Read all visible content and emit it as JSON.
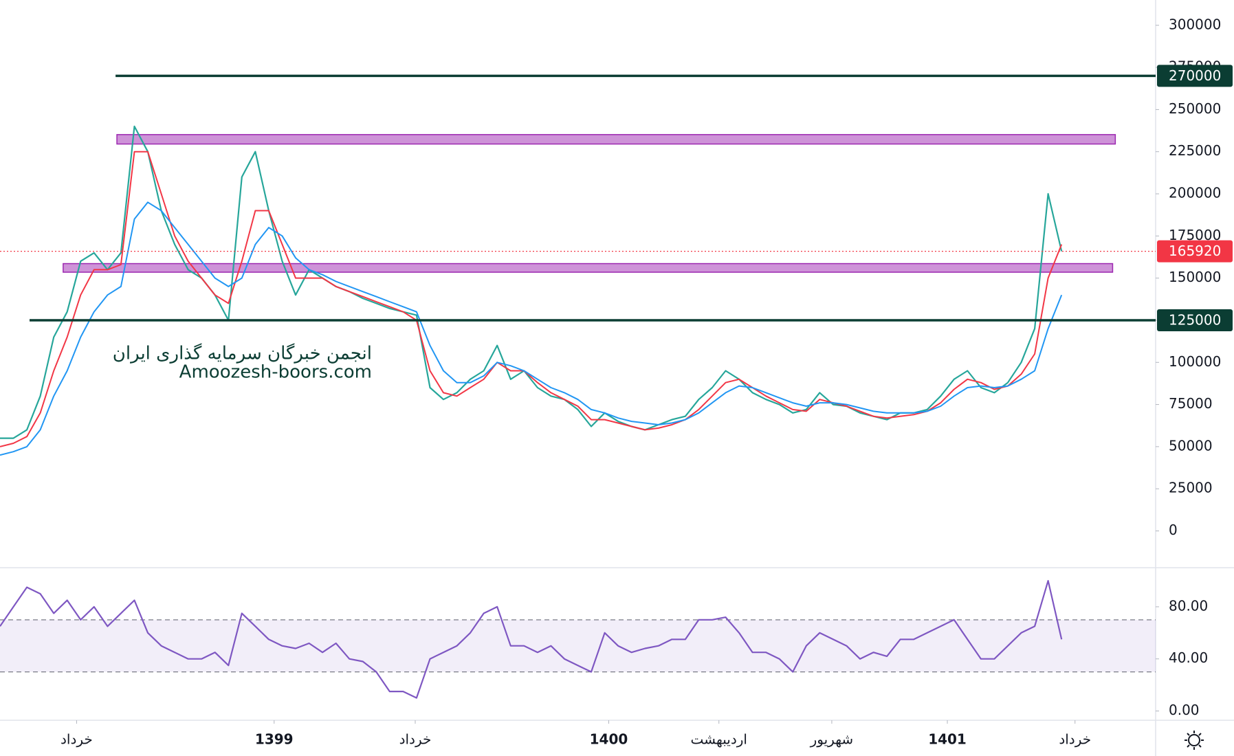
{
  "chart_data": [
    {
      "type": "line",
      "x": [
        0,
        1,
        2,
        3,
        4,
        5,
        6,
        7,
        8,
        9,
        10,
        11,
        12,
        13,
        14,
        15,
        16,
        17,
        18,
        19,
        20,
        21,
        22,
        23,
        24,
        25,
        26,
        27,
        28,
        29,
        30,
        31,
        32,
        33,
        34,
        35,
        36,
        37,
        38,
        39,
        40,
        41,
        42,
        43,
        44,
        45,
        46,
        47,
        48,
        49,
        50,
        51,
        52,
        53,
        54,
        55,
        56,
        57,
        58,
        59,
        60,
        61,
        62,
        63,
        64,
        65,
        66,
        67,
        68,
        69,
        70,
        71,
        72,
        73,
        74,
        75,
        76,
        77,
        78,
        79
      ],
      "series": [
        {
          "color": "#26a69a",
          "values": [
            55000,
            55000,
            60000,
            80000,
            115000,
            130000,
            160000,
            165000,
            155000,
            165000,
            240000,
            225000,
            190000,
            170000,
            155000,
            150000,
            140000,
            125000,
            210000,
            225000,
            190000,
            160000,
            140000,
            155000,
            150000,
            145000,
            142000,
            138000,
            135000,
            132000,
            130000,
            128000,
            85000,
            78000,
            82000,
            90000,
            95000,
            110000,
            90000,
            95000,
            85000,
            80000,
            78000,
            72000,
            62000,
            70000,
            65000,
            62000,
            60000,
            63000,
            66000,
            68000,
            78000,
            85000,
            95000,
            90000,
            82000,
            78000,
            75000,
            70000,
            72000,
            82000,
            75000,
            74000,
            70000,
            68000,
            66000,
            70000,
            70000,
            72000,
            80000,
            90000,
            95000,
            85000,
            82000,
            88000,
            100000,
            120000,
            200000,
            165920
          ]
        },
        {
          "color": "#f23645",
          "values": [
            50000,
            52000,
            56000,
            70000,
            95000,
            115000,
            140000,
            155000,
            155000,
            158000,
            225000,
            225000,
            200000,
            175000,
            160000,
            150000,
            140000,
            135000,
            160000,
            190000,
            190000,
            170000,
            150000,
            150000,
            150000,
            145000,
            142000,
            139000,
            136000,
            133000,
            130000,
            125000,
            95000,
            82000,
            80000,
            85000,
            90000,
            100000,
            95000,
            95000,
            88000,
            82000,
            78000,
            74000,
            66000,
            66000,
            64000,
            62000,
            60000,
            61000,
            63000,
            66000,
            72000,
            80000,
            88000,
            90000,
            85000,
            80000,
            76000,
            72000,
            71000,
            78000,
            76000,
            74000,
            71000,
            68000,
            67000,
            68000,
            69000,
            71000,
            76000,
            84000,
            90000,
            88000,
            84000,
            86000,
            93000,
            105000,
            150000,
            170000
          ]
        },
        {
          "color": "#2196f3",
          "values": [
            45000,
            47000,
            50000,
            60000,
            80000,
            95000,
            115000,
            130000,
            140000,
            145000,
            185000,
            195000,
            190000,
            180000,
            170000,
            160000,
            150000,
            145000,
            150000,
            170000,
            180000,
            175000,
            162000,
            155000,
            152000,
            148000,
            145000,
            142000,
            139000,
            136000,
            133000,
            130000,
            110000,
            95000,
            88000,
            88000,
            92000,
            100000,
            98000,
            95000,
            90000,
            85000,
            82000,
            78000,
            72000,
            70000,
            67000,
            65000,
            64000,
            63000,
            64000,
            66000,
            70000,
            76000,
            82000,
            86000,
            85000,
            82000,
            79000,
            76000,
            74000,
            76000,
            76000,
            75000,
            73000,
            71000,
            70000,
            70000,
            70000,
            71000,
            74000,
            80000,
            85000,
            86000,
            85000,
            86000,
            90000,
            95000,
            120000,
            140000
          ]
        }
      ],
      "xlim": [
        0,
        86
      ],
      "xticks": [
        {
          "value": 5.7,
          "label": "خرداد"
        },
        {
          "value": 20.4,
          "label": "1399"
        },
        {
          "value": 30.9,
          "label": "خرداد"
        },
        {
          "value": 45.3,
          "label": "1400"
        },
        {
          "value": 53.5,
          "label": "اردیبهشت"
        },
        {
          "value": 61.9,
          "label": "شهریور"
        },
        {
          "value": 70.5,
          "label": "1401"
        },
        {
          "value": 80.0,
          "label": "خرداد"
        }
      ],
      "ylim": [
        -21000,
        315000
      ],
      "yticks": [
        0,
        25000,
        50000,
        75000,
        100000,
        125000,
        150000,
        175000,
        200000,
        225000,
        250000,
        275000,
        300000
      ],
      "grid": false,
      "levels": [
        {
          "value": 270000,
          "x_from": 8.6,
          "color": "#0b3d33"
        },
        {
          "value": 125000,
          "x_from": 2.2,
          "color": "#0b3d33"
        }
      ],
      "zones": [
        {
          "from": 229550,
          "to": 235150,
          "x": [
            8.7,
            83
          ]
        },
        {
          "from": 153500,
          "to": 158600,
          "x": [
            4.7,
            82.8
          ]
        }
      ],
      "zone_color": "#ce93d8",
      "last_price": 165920,
      "last_price_color": "#f23645",
      "watermark": [
        "انجمن خبرگان سرمایه گذاری ایران",
        "Amoozesh-boors.com"
      ]
    },
    {
      "type": "line",
      "x": [
        0,
        1,
        2,
        3,
        4,
        5,
        6,
        7,
        8,
        9,
        10,
        11,
        12,
        13,
        14,
        15,
        16,
        17,
        18,
        19,
        20,
        21,
        22,
        23,
        24,
        25,
        26,
        27,
        28,
        29,
        30,
        31,
        32,
        33,
        34,
        35,
        36,
        37,
        38,
        39,
        40,
        41,
        42,
        43,
        44,
        45,
        46,
        47,
        48,
        49,
        50,
        51,
        52,
        53,
        54,
        55,
        56,
        57,
        58,
        59,
        60,
        61,
        62,
        63,
        64,
        65,
        66,
        67,
        68,
        69,
        70,
        71,
        72,
        73,
        74,
        75,
        76,
        77,
        78,
        79
      ],
      "series": [
        {
          "color": "#7e57c2",
          "values": [
            65,
            80,
            95,
            90,
            75,
            85,
            70,
            80,
            65,
            75,
            85,
            60,
            50,
            45,
            40,
            40,
            45,
            35,
            75,
            65,
            55,
            50,
            48,
            52,
            45,
            52,
            40,
            38,
            30,
            15,
            15,
            10,
            40,
            45,
            50,
            60,
            75,
            80,
            50,
            50,
            45,
            50,
            40,
            35,
            30,
            60,
            50,
            45,
            48,
            50,
            55,
            55,
            70,
            70,
            72,
            60,
            45,
            45,
            40,
            30,
            50,
            60,
            55,
            50,
            40,
            45,
            42,
            55,
            55,
            60,
            65,
            70,
            55,
            40,
            40,
            50,
            60,
            65,
            100,
            55
          ]
        }
      ],
      "xlim": [
        0,
        86
      ],
      "ylim": [
        -6.6,
        109.5
      ],
      "yticks": [
        {
          "value": 0,
          "label": "0.00"
        },
        {
          "value": 40,
          "label": "40.00"
        },
        {
          "value": 80,
          "label": "80.00"
        }
      ],
      "bands": [
        30,
        70
      ],
      "band_color": "#7e57c2"
    }
  ]
}
